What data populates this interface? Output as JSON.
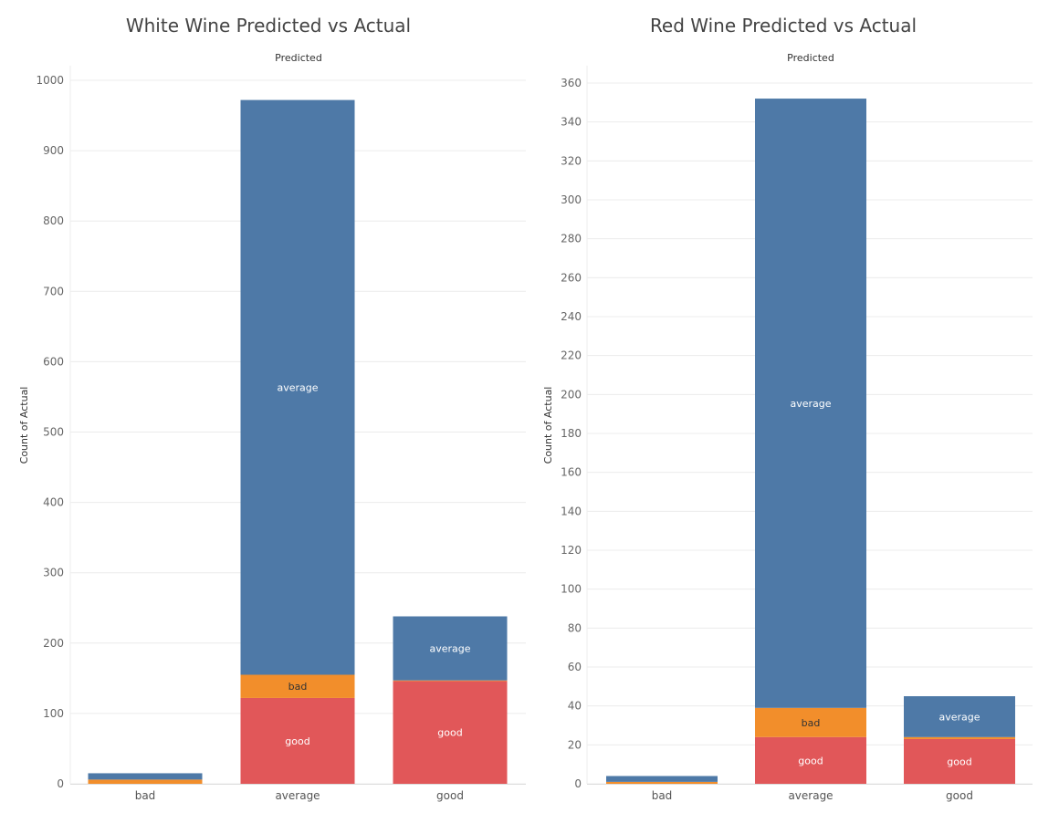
{
  "chart_data": [
    {
      "type": "bar",
      "stacked": true,
      "title": "White Wine Predicted vs Actual",
      "column_header": "Predicted",
      "ylabel": "Count of Actual",
      "ylim": [
        0,
        1000
      ],
      "yticks": [
        0,
        100,
        200,
        300,
        400,
        500,
        600,
        700,
        800,
        900,
        1000
      ],
      "categories": [
        "bad",
        "average",
        "good"
      ],
      "series": [
        {
          "name": "good",
          "color": "#e15759",
          "text_color": "#ffffff",
          "values": [
            0,
            122,
            146
          ]
        },
        {
          "name": "bad",
          "color": "#f28e2b",
          "text_color": "#333333",
          "values": [
            6,
            33,
            1
          ]
        },
        {
          "name": "average",
          "color": "#4e79a7",
          "text_color": "#ffffff",
          "values": [
            9,
            817,
            91
          ]
        }
      ],
      "data_labels": [
        {
          "series": "good",
          "category": "average",
          "text": "good"
        },
        {
          "series": "bad",
          "category": "average",
          "text": "bad"
        },
        {
          "series": "average",
          "category": "average",
          "text": "average"
        },
        {
          "series": "good",
          "category": "good",
          "text": "good"
        },
        {
          "series": "average",
          "category": "good",
          "text": "average"
        }
      ],
      "grid": true
    },
    {
      "type": "bar",
      "stacked": true,
      "title": "Red Wine Predicted vs Actual",
      "column_header": "Predicted",
      "ylabel": "Count of Actual",
      "ylim": [
        0,
        360
      ],
      "yticks": [
        0,
        20,
        40,
        60,
        80,
        100,
        120,
        140,
        160,
        180,
        200,
        220,
        240,
        260,
        280,
        300,
        320,
        340,
        360
      ],
      "categories": [
        "bad",
        "average",
        "good"
      ],
      "series": [
        {
          "name": "good",
          "color": "#e15759",
          "text_color": "#ffffff",
          "values": [
            0,
            24,
            23
          ]
        },
        {
          "name": "bad",
          "color": "#f28e2b",
          "text_color": "#333333",
          "values": [
            1,
            15,
            1
          ]
        },
        {
          "name": "average",
          "color": "#4e79a7",
          "text_color": "#ffffff",
          "values": [
            3,
            313,
            21
          ]
        }
      ],
      "data_labels": [
        {
          "series": "good",
          "category": "average",
          "text": "good"
        },
        {
          "series": "bad",
          "category": "average",
          "text": "bad"
        },
        {
          "series": "average",
          "category": "average",
          "text": "average"
        },
        {
          "series": "good",
          "category": "good",
          "text": "good"
        },
        {
          "series": "average",
          "category": "good",
          "text": "average"
        }
      ],
      "grid": true
    }
  ]
}
